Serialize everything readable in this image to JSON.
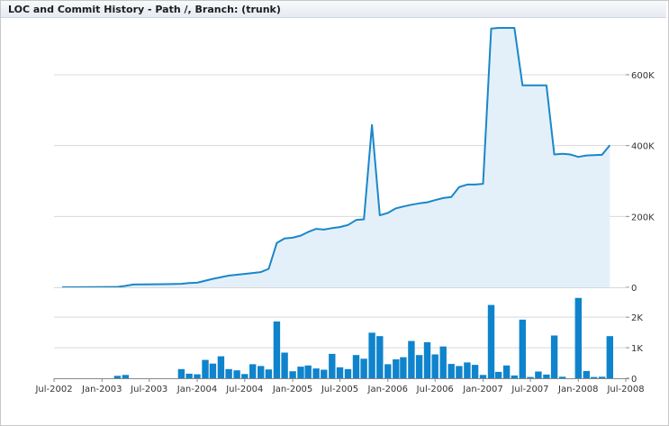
{
  "title": "LOC and Commit History - Path /, Branch: (trunk)",
  "colors": {
    "line": "#1a87c9",
    "area": "#e4f0f9",
    "bar": "#0f84cc",
    "grid": "#d9d9d9",
    "axis": "#888888"
  },
  "chart_data": [
    {
      "type": "area",
      "name": "lines-of-code",
      "ylim": [
        0,
        760000
      ],
      "grid": true,
      "yticks": [
        {
          "value": 0,
          "label": "0"
        },
        {
          "value": 200000,
          "label": "200K"
        },
        {
          "value": 400000,
          "label": "400K"
        },
        {
          "value": 600000,
          "label": "600K"
        }
      ],
      "points": [
        [
          "2002-08-01",
          0
        ],
        [
          "2003-03-01",
          1000
        ],
        [
          "2003-04-01",
          4000
        ],
        [
          "2003-05-01",
          8000
        ],
        [
          "2003-09-01",
          9000
        ],
        [
          "2003-11-01",
          10000
        ],
        [
          "2003-12-01",
          12000
        ],
        [
          "2004-01-01",
          13000
        ],
        [
          "2004-03-01",
          24000
        ],
        [
          "2004-05-01",
          33000
        ],
        [
          "2004-07-01",
          38000
        ],
        [
          "2004-09-01",
          43000
        ],
        [
          "2004-10-01",
          52000
        ],
        [
          "2004-11-01",
          125000
        ],
        [
          "2004-12-01",
          138000
        ],
        [
          "2005-01-01",
          140000
        ],
        [
          "2005-02-01",
          146000
        ],
        [
          "2005-03-01",
          156000
        ],
        [
          "2005-04-01",
          165000
        ],
        [
          "2005-05-01",
          163000
        ],
        [
          "2005-06-01",
          167000
        ],
        [
          "2005-07-01",
          170000
        ],
        [
          "2005-08-01",
          176000
        ],
        [
          "2005-09-01",
          190000
        ],
        [
          "2005-10-01",
          192000
        ],
        [
          "2005-11-01",
          458000
        ],
        [
          "2005-12-01",
          203000
        ],
        [
          "2006-01-01",
          210000
        ],
        [
          "2006-02-01",
          223000
        ],
        [
          "2006-03-01",
          228000
        ],
        [
          "2006-04-01",
          233000
        ],
        [
          "2006-05-01",
          237000
        ],
        [
          "2006-06-01",
          240000
        ],
        [
          "2006-07-01",
          246000
        ],
        [
          "2006-08-01",
          252000
        ],
        [
          "2006-09-01",
          255000
        ],
        [
          "2006-10-01",
          283000
        ],
        [
          "2006-11-01",
          290000
        ],
        [
          "2006-12-01",
          290000
        ],
        [
          "2007-01-01",
          292000
        ],
        [
          "2007-02-01",
          730000
        ],
        [
          "2007-03-01",
          732000
        ],
        [
          "2007-05-01",
          732000
        ],
        [
          "2007-06-01",
          570000
        ],
        [
          "2007-09-01",
          570000
        ],
        [
          "2007-10-01",
          375000
        ],
        [
          "2007-11-01",
          377000
        ],
        [
          "2007-12-01",
          375000
        ],
        [
          "2008-01-01",
          368000
        ],
        [
          "2008-02-01",
          372000
        ],
        [
          "2008-04-01",
          374000
        ],
        [
          "2008-05-01",
          401000
        ]
      ]
    },
    {
      "type": "bar",
      "name": "commits",
      "ylim": [
        0,
        2800
      ],
      "yticks": [
        {
          "value": 0,
          "label": "0"
        },
        {
          "value": 1000,
          "label": "1K"
        },
        {
          "value": 2000,
          "label": "2K"
        }
      ],
      "bars": [
        [
          "2003-03-01",
          80
        ],
        [
          "2003-04-01",
          110
        ],
        [
          "2003-11-01",
          300
        ],
        [
          "2003-12-01",
          150
        ],
        [
          "2004-01-01",
          130
        ],
        [
          "2004-02-01",
          600
        ],
        [
          "2004-03-01",
          480
        ],
        [
          "2004-04-01",
          720
        ],
        [
          "2004-05-01",
          300
        ],
        [
          "2004-06-01",
          260
        ],
        [
          "2004-07-01",
          140
        ],
        [
          "2004-08-01",
          460
        ],
        [
          "2004-09-01",
          400
        ],
        [
          "2004-10-01",
          290
        ],
        [
          "2004-11-01",
          1860
        ],
        [
          "2004-12-01",
          840
        ],
        [
          "2005-01-01",
          230
        ],
        [
          "2005-02-01",
          380
        ],
        [
          "2005-03-01",
          420
        ],
        [
          "2005-04-01",
          320
        ],
        [
          "2005-05-01",
          280
        ],
        [
          "2005-06-01",
          800
        ],
        [
          "2005-07-01",
          360
        ],
        [
          "2005-08-01",
          300
        ],
        [
          "2005-09-01",
          760
        ],
        [
          "2005-10-01",
          640
        ],
        [
          "2005-11-01",
          1490
        ],
        [
          "2005-12-01",
          1380
        ],
        [
          "2006-01-01",
          460
        ],
        [
          "2006-02-01",
          620
        ],
        [
          "2006-03-01",
          690
        ],
        [
          "2006-04-01",
          1220
        ],
        [
          "2006-05-01",
          760
        ],
        [
          "2006-06-01",
          1180
        ],
        [
          "2006-07-01",
          780
        ],
        [
          "2006-08-01",
          1040
        ],
        [
          "2006-09-01",
          470
        ],
        [
          "2006-10-01",
          400
        ],
        [
          "2006-11-01",
          520
        ],
        [
          "2006-12-01",
          440
        ],
        [
          "2007-01-01",
          110
        ],
        [
          "2007-02-01",
          2400
        ],
        [
          "2007-03-01",
          210
        ],
        [
          "2007-04-01",
          420
        ],
        [
          "2007-05-01",
          90
        ],
        [
          "2007-06-01",
          1920
        ],
        [
          "2007-07-01",
          40
        ],
        [
          "2007-08-01",
          220
        ],
        [
          "2007-09-01",
          120
        ],
        [
          "2007-10-01",
          1400
        ],
        [
          "2007-11-01",
          50
        ],
        [
          "2008-01-01",
          2630
        ],
        [
          "2008-02-01",
          240
        ],
        [
          "2008-03-01",
          40
        ],
        [
          "2008-04-01",
          50
        ],
        [
          "2008-05-01",
          1380
        ]
      ]
    }
  ],
  "xticks": [
    {
      "value": "2002-07-01",
      "label": "Jul-2002"
    },
    {
      "value": "2003-01-01",
      "label": "Jan-2003"
    },
    {
      "value": "2003-07-01",
      "label": "Jul-2003"
    },
    {
      "value": "2004-01-01",
      "label": "Jan-2004"
    },
    {
      "value": "2004-07-01",
      "label": "Jul-2004"
    },
    {
      "value": "2005-01-01",
      "label": "Jan-2005"
    },
    {
      "value": "2005-07-01",
      "label": "Jul-2005"
    },
    {
      "value": "2006-01-01",
      "label": "Jan-2006"
    },
    {
      "value": "2006-07-01",
      "label": "Jul-2006"
    },
    {
      "value": "2007-01-01",
      "label": "Jan-2007"
    },
    {
      "value": "2007-07-01",
      "label": "Jul-2007"
    },
    {
      "value": "2008-01-01",
      "label": "Jan-2008"
    },
    {
      "value": "2008-07-01",
      "label": "Jul-2008"
    }
  ]
}
